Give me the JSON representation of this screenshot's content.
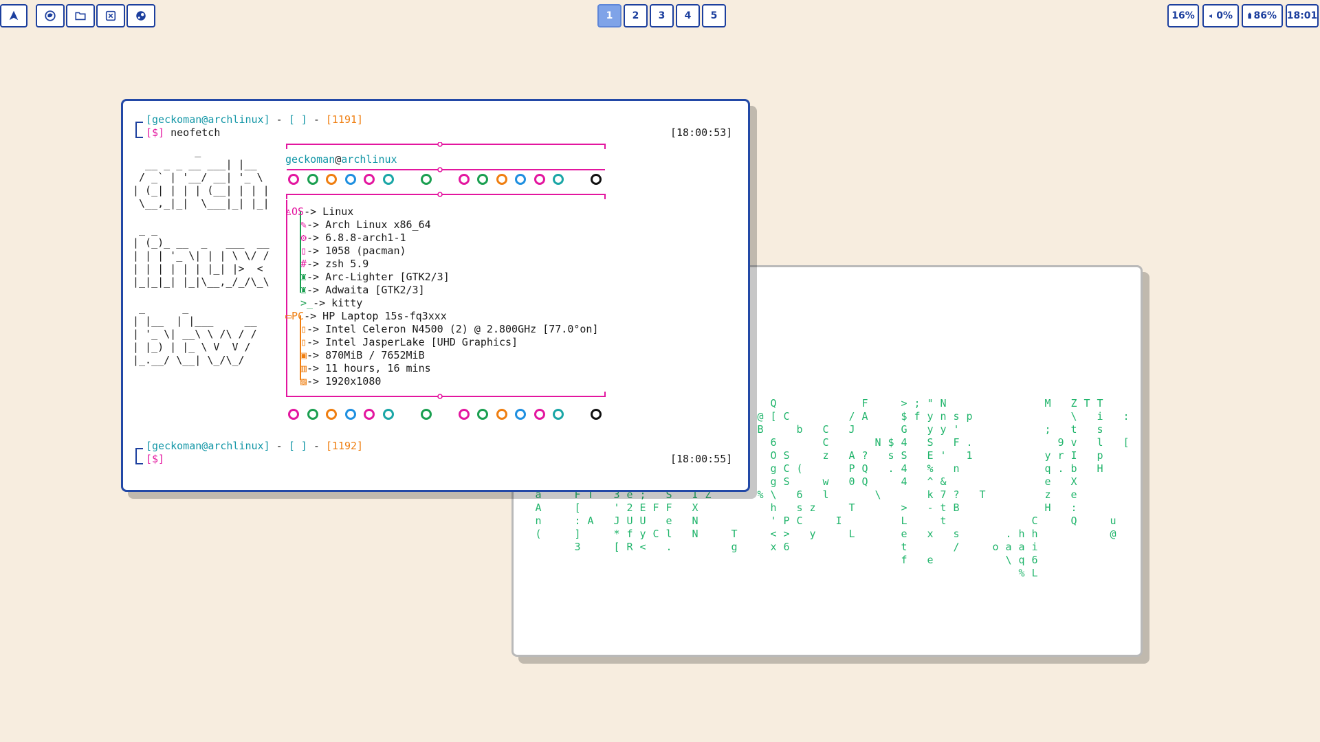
{
  "topbar": {
    "left_icons": [
      "arch-icon",
      "firefox-icon",
      "folder-icon",
      "editor-icon",
      "steam-icon"
    ],
    "workspaces": [
      "1",
      "2",
      "3",
      "4",
      "5"
    ],
    "active_workspace": "1",
    "cpu": "16%",
    "volume": "0%",
    "battery": "86%",
    "clock": "18:01"
  },
  "terminal1": {
    "prompt1": {
      "user": "geckoman",
      "at": "@",
      "host": "archlinux",
      "sep": " - ",
      "dir": "[ ]",
      "dash": " - ",
      "count": "[1191]",
      "sym": "[$]",
      "cmd": " neofetch",
      "time": "[18:00:53]"
    },
    "prompt2": {
      "user": "geckoman",
      "at": "@",
      "host": "archlinux",
      "sep": " - ",
      "dir": "[ ]",
      "dash": " - ",
      "count": "[1192]",
      "sym": "[$]",
      "time": "[18:00:55]"
    },
    "header": {
      "user": "geckoman",
      "at": "@",
      "host": "archlinux"
    },
    "ascii_art": "          _\n  __ _ _ __ ___| |__\n / _` | '__/ __| '_ \\\n| (_| | | | (__| | | |\n \\__,_|_|  \\___|_| |_|\n\n _ _\n| (_)_ __  _   ___  __\n| | | '_ \\| | | \\ \\/ /\n| | | | | | |_| |>  <\n|_|_|_| |_|\\__,_/_/\\_\\\n\n _      _\n| |__  | |___     __\n| '_ \\| __\\ \\ /\\ / /\n| |_) | |_ \\ V  V /\n|_.__/ \\__| \\_/\\_/",
    "os_label": "OS",
    "os": "-> Linux",
    "os_items": [
      "-> Arch Linux x86_64",
      "-> 6.8.8-arch1-1",
      "-> 1058 (pacman)",
      "-> zsh 5.9",
      "-> Arc-Lighter [GTK2/3]",
      "-> Adwaita [GTK2/3]",
      "-> kitty"
    ],
    "pc_label": "PC",
    "pc": "-> HP Laptop 15s-fq3xxx",
    "pc_items": [
      "-> Intel Celeron N4500 (2) @ 2.800GHz [77.0°on]",
      "-> Intel JasperLake [UHD Graphics]",
      "-> 870MiB / 7652MiB",
      "-> 11 hours, 16 mins",
      "-> 1920x1080"
    ],
    "palette": [
      "#e3169f",
      "#1a9f50",
      "#ef7e10",
      "#1e8fe0",
      "#e3169f",
      "#1aa6a6",
      "",
      "#1a9f50",
      "",
      "#e3169f",
      "#1a9f50",
      "#ef7e10",
      "#1e8fe0",
      "#e3169f",
      "#1aa6a6",
      "",
      "#111111"
    ]
  },
  "matrix": {
    "columns": [
      "         (WHqF=GaAn(",
      "          ",
      "          ?(=U ",
      "         7 jo ZDF[:]3",
      "         PCj?$M1T A ",
      "         c [ ",
      "         5PEY  !3'J*[",
      "         utKw2V e2UfR",
      "          Wm GJ?;EUy<",
      "            ^'mT F C",
      "         c%:^P1ASFel.",
      "         51)u* ",
      "         KCYG:S\\IXNN",
      "             W#CZ",
      "         *J\"    ",
      "                   Tg",
      "         QeQ>",
      "          @B    %",
      "         Q[ 6Ogg\\h'<x",
      "          C  SCS  P>6",
      "           b  ( 6sC",
      "                 z y",
      "           CCz wl",
      "                  I",
      "          /J AP0 T L",
      "         FA  ?QQ",
      "            N   \\",
      "            $s.",
      "         >$G4S44 >Letf",
      "         ;f ",
      "         \"yySE%^k- x e",
      "         Nny ' &7tt",
      "          s'F n ?B s/",
      "          p .1",
      "                T",
      "                    o",
      "                   .a\\",
      "                   haq%",
      "                  Chi6L",
      "         M ; yqezH",
      "            9r.",
      "         Z\\tvIbXe:Q",
      "         T ",
      "         TislpH",
      "                  u@ ",
      "          : [ "
    ]
  }
}
